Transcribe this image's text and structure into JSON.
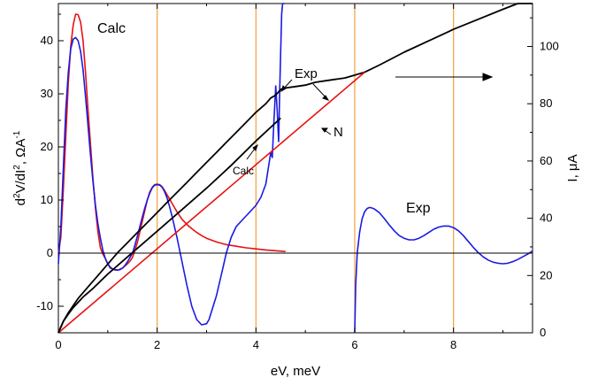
{
  "chart_data": {
    "type": "line",
    "xlabel": "eV, meV",
    "ylabel": "d²V/dI², ΩA⁻¹",
    "ylabel_parts": {
      "d": "d",
      "sup2a": "2",
      "mid": "V/dI",
      "sup2b": "2",
      "unit": ", ΩA",
      "sup": "-1"
    },
    "y2label": "I, μA",
    "xlim": [
      0,
      9.6
    ],
    "ylim": [
      -15,
      47
    ],
    "y2lim": [
      0,
      115
    ],
    "x_ticks": [
      "0",
      "2",
      "4",
      "6",
      "8"
    ],
    "y_ticks": [
      "-10",
      "0",
      "10",
      "20",
      "30",
      "40"
    ],
    "y2_ticks": [
      "0",
      "20",
      "40",
      "60",
      "80",
      "100"
    ],
    "vertical_markers": [
      2,
      4,
      6,
      8
    ],
    "annotations": {
      "calc_top": "Calc",
      "calc_mid": "Calc",
      "exp_top": "Exp",
      "exp_right": "Exp",
      "n_label": "N"
    },
    "series": [
      {
        "axis": "left",
        "color": "#e81010",
        "x": [
          0,
          0.05,
          0.1,
          0.15,
          0.2,
          0.25,
          0.3,
          0.35,
          0.4,
          0.45,
          0.5,
          0.55,
          0.6,
          0.65,
          0.7,
          0.75,
          0.8,
          0.85,
          0.9,
          0.95,
          1.0,
          1.05,
          1.1,
          1.15,
          1.2,
          1.25,
          1.3,
          1.35,
          1.4,
          1.45,
          1.5,
          1.55,
          1.6,
          1.65,
          1.7,
          1.75,
          1.8,
          1.85,
          1.9,
          1.95,
          2.0,
          2.05,
          2.1,
          2.15,
          2.2,
          2.25,
          2.3,
          2.35,
          2.4,
          2.5,
          2.6,
          2.7,
          2.8,
          2.9,
          3.0,
          3.2,
          3.4,
          3.6,
          3.8,
          4.0,
          4.2,
          4.4,
          4.6
        ],
        "y": [
          0,
          3,
          12,
          22,
          32,
          39,
          43,
          45,
          44.9,
          43.5,
          40,
          34,
          27,
          20.5,
          14,
          8.5,
          4,
          1,
          -0.2,
          -1,
          -2,
          -2.6,
          -3,
          -3.2,
          -3.2,
          -3.0,
          -2.8,
          -2.4,
          -2.0,
          -1.5,
          -0.8,
          0.5,
          2,
          4,
          6,
          8,
          10,
          11.5,
          12.4,
          12.9,
          13,
          12.9,
          12.5,
          11.8,
          11,
          10.2,
          9.4,
          8.6,
          7.8,
          6.4,
          5.4,
          4.6,
          3.9,
          3.3,
          2.8,
          2.1,
          1.6,
          1.3,
          1.0,
          0.8,
          0.6,
          0.45,
          0.3
        ]
      },
      {
        "axis": "left",
        "color": "#1a1ae6",
        "x": [
          0,
          0.05,
          0.1,
          0.15,
          0.2,
          0.25,
          0.3,
          0.35,
          0.4,
          0.45,
          0.5,
          0.55,
          0.6,
          0.65,
          0.7,
          0.75,
          0.8,
          0.85,
          0.9,
          0.95,
          1.0,
          1.05,
          1.1,
          1.15,
          1.2,
          1.25,
          1.3,
          1.35,
          1.4,
          1.45,
          1.5,
          1.55,
          1.6,
          1.65,
          1.7,
          1.75,
          1.8,
          1.85,
          1.9,
          1.95,
          2.0,
          2.05,
          2.1,
          2.15,
          2.2,
          2.25,
          2.3,
          2.4,
          2.5,
          2.6,
          2.7,
          2.8,
          2.9,
          3.0,
          3.05,
          3.1,
          3.2,
          3.3,
          3.4,
          3.5,
          3.6,
          3.7,
          3.8,
          3.9,
          4.0,
          4.1,
          4.2,
          4.25,
          4.3,
          4.33,
          4.36,
          4.4,
          4.43,
          4.46,
          4.48,
          4.5,
          4.52,
          4.54,
          4.56,
          4.58
        ],
        "y": [
          -2,
          5,
          16,
          27,
          34,
          38.5,
          40.3,
          40.6,
          40,
          38,
          34.5,
          29.5,
          24,
          18.5,
          13.5,
          9,
          5.5,
          2.8,
          0.5,
          -1,
          -2,
          -2.8,
          -3,
          -3.1,
          -3.2,
          -3.1,
          -2.8,
          -2.3,
          -1.6,
          -0.8,
          0,
          1.5,
          3.2,
          5,
          6.8,
          8.5,
          10,
          11.3,
          12.3,
          12.8,
          12.9,
          12.8,
          12.4,
          11.6,
          10.4,
          8.8,
          7,
          3,
          -1.5,
          -6,
          -10,
          -12.5,
          -13.5,
          -13.3,
          -12.5,
          -11,
          -8,
          -4,
          0,
          3,
          5,
          6,
          7,
          8,
          9,
          10.5,
          13,
          16,
          19,
          18,
          24,
          31.5,
          27,
          21,
          30,
          38,
          45,
          47,
          47,
          47
        ]
      },
      {
        "axis": "left",
        "color": "#1a1ae6",
        "x": [
          6.0,
          6.02,
          6.05,
          6.1,
          6.15,
          6.2,
          6.25,
          6.3,
          6.35,
          6.4,
          6.5,
          6.6,
          6.7,
          6.8,
          6.9,
          7.0,
          7.1,
          7.2,
          7.3,
          7.4,
          7.5,
          7.6,
          7.7,
          7.8,
          7.9,
          8.0,
          8.1,
          8.2,
          8.3,
          8.4,
          8.5,
          8.6,
          8.7,
          8.8,
          8.9,
          9.0,
          9.1,
          9.2,
          9.3,
          9.4,
          9.5,
          9.6
        ],
        "y": [
          -15,
          -6,
          0,
          4,
          6.5,
          7.8,
          8.4,
          8.6,
          8.5,
          8.3,
          7.6,
          6.5,
          5.3,
          4.2,
          3.3,
          2.8,
          2.5,
          2.5,
          2.8,
          3.3,
          3.9,
          4.5,
          4.9,
          5.1,
          5.1,
          4.8,
          4.2,
          3.3,
          2.2,
          1.1,
          0.1,
          -0.7,
          -1.3,
          -1.7,
          -1.9,
          -2.0,
          -1.9,
          -1.6,
          -1.2,
          -0.7,
          -0.2,
          0.4
        ]
      },
      {
        "axis": "right",
        "color": "#000000",
        "x": [
          0,
          0.05,
          0.1,
          0.15,
          0.2,
          0.3,
          0.4,
          0.5,
          0.6,
          0.8,
          1.0,
          1.2,
          1.4,
          1.6,
          1.8,
          2.0,
          2.2,
          2.4,
          2.6,
          2.8,
          3.0,
          3.2,
          3.4,
          3.6,
          3.8,
          4.0,
          4.2,
          4.3,
          4.4,
          4.45,
          4.5,
          4.6,
          4.8,
          5.0,
          5.2,
          5.4,
          5.6,
          5.8,
          6.0,
          6.2,
          6.5,
          7.0,
          7.5,
          8.0,
          8.5,
          9.0,
          9.3,
          9.6
        ],
        "y": [
          0,
          2,
          4,
          5.5,
          7,
          9.5,
          12,
          14,
          16,
          20,
          24,
          28,
          31.5,
          35,
          38.5,
          42,
          45.5,
          49,
          52.5,
          56,
          59.5,
          63,
          66.5,
          70,
          73.5,
          77,
          80,
          82,
          83,
          84,
          85,
          85.5,
          86,
          86.5,
          87.5,
          88,
          88.5,
          89,
          90,
          91,
          93.5,
          98,
          102,
          106,
          109.5,
          113,
          115,
          117
        ]
      },
      {
        "axis": "right",
        "color": "#e81010",
        "x": [
          0,
          6.2
        ],
        "y": [
          0,
          91
        ]
      },
      {
        "axis": "right",
        "color": "#000000",
        "x": [
          0,
          0.1,
          0.2,
          0.3,
          0.5,
          0.7,
          1.0,
          1.3,
          1.6,
          2.0,
          2.5,
          3.0,
          3.5,
          4.0,
          4.5
        ],
        "y": [
          0,
          4,
          6.5,
          8.8,
          12.5,
          15.5,
          20.5,
          25,
          29.5,
          35.5,
          43,
          50.5,
          58.5,
          67,
          75
        ]
      }
    ]
  }
}
